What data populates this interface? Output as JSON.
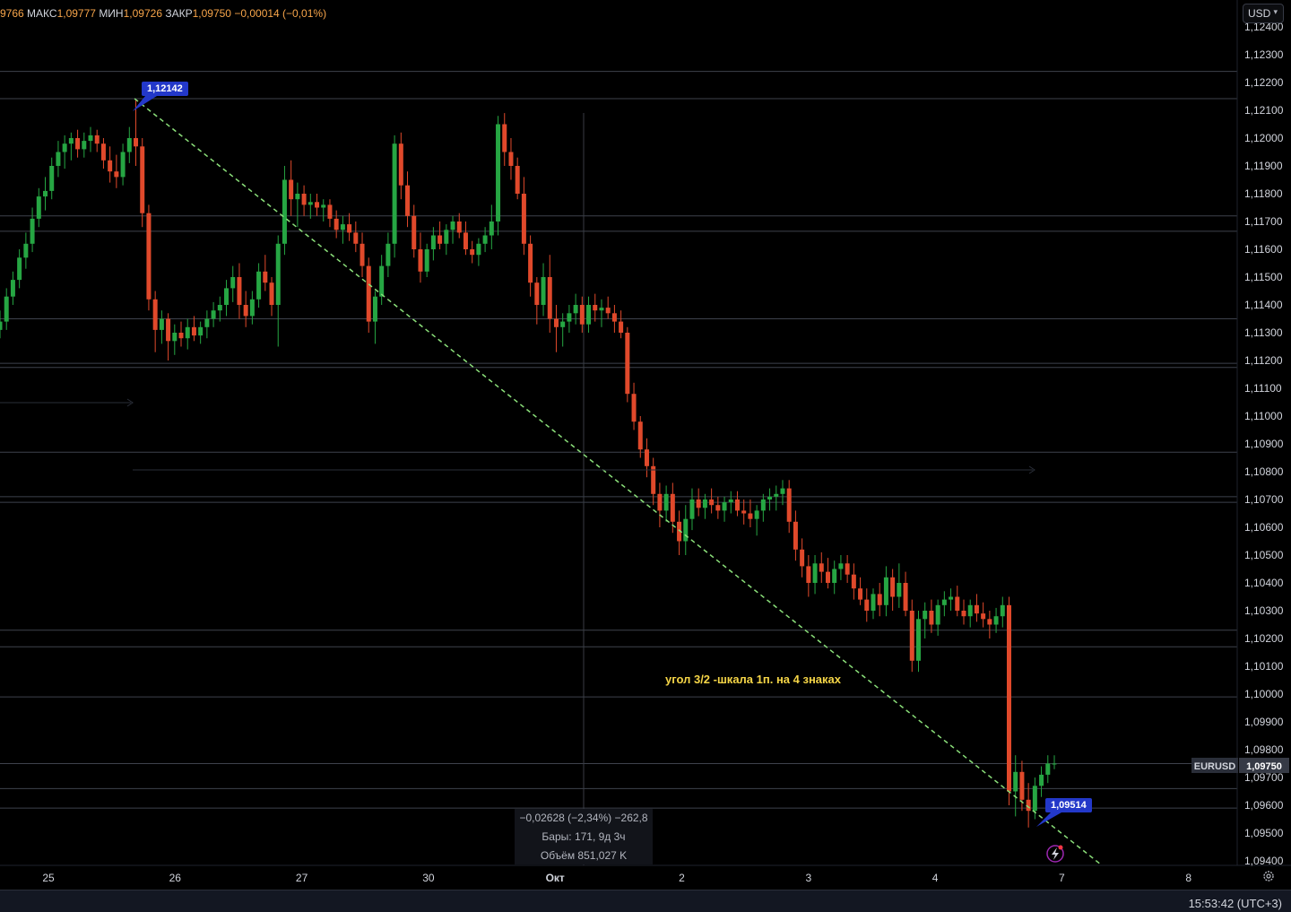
{
  "ohlc": {
    "open_tail": "9766",
    "high_label": "МАКС",
    "high": "1,09777",
    "low_label": "МИН",
    "low": "1,09726",
    "close_label": "ЗАКР",
    "close": "1,09750",
    "change": "−0,00014 (−0,01%)"
  },
  "currency": "USD",
  "time": "15:53:42 (UTC+3)",
  "annotation": "угол 3/2 -шкала 1п. на 4 знаках",
  "tag_high": "1,12142",
  "tag_low": "1,09514",
  "symbol": "EURUSD",
  "last_price": "1,09750",
  "measure": {
    "line1": "−0,02628 (−2,34%) −262,8",
    "line2": "Бары: 171, 9д 3ч",
    "line3": "Объём 851,027 K"
  },
  "colors": {
    "up": "#26a643",
    "down": "#e0492b",
    "trend": "#8be07a",
    "note": "#f5d547",
    "tag": "#2338c9"
  },
  "chart_data": {
    "type": "candlestick",
    "symbol": "EURUSD",
    "y_ticks": [
      "1,12400",
      "1,12300",
      "1,12200",
      "1,12100",
      "1,12000",
      "1,11900",
      "1,11800",
      "1,11700",
      "1,11600",
      "1,11500",
      "1,11400",
      "1,11300",
      "1,11200",
      "1,11100",
      "1,11000",
      "1,10900",
      "1,10800",
      "1,10700",
      "1,10600",
      "1,10500",
      "1,10400",
      "1,10300",
      "1,10200",
      "1,10100",
      "1,10000",
      "1,09900",
      "1,09800",
      "1,09700",
      "1,09600",
      "1,09500",
      "1,09400"
    ],
    "ylim": [
      1.0936,
      1.1244
    ],
    "x_ticks": [
      "25",
      "26",
      "27",
      "30",
      "Окт",
      "2",
      "3",
      "4",
      "7",
      "8"
    ],
    "x_tick_days": [
      0,
      1,
      2,
      3,
      4,
      5,
      6,
      7,
      8,
      9
    ],
    "horizontal_levels": [
      1.1224,
      1.12142,
      1.1172,
      1.11665,
      1.1135,
      1.1119,
      1.11175,
      1.1087,
      1.1071,
      1.1069,
      1.1023,
      1.1017,
      1.0999,
      1.0975,
      1.0966,
      1.0959
    ],
    "trendline": {
      "from": {
        "day": 0.68,
        "price": 1.12142
      },
      "to": {
        "day": 8.3,
        "price": 1.0939
      }
    },
    "candles": [
      [
        1.1131,
        1.1138,
        1.1128,
        1.1134
      ],
      [
        1.1134,
        1.1146,
        1.1131,
        1.1143
      ],
      [
        1.1143,
        1.1152,
        1.114,
        1.1149
      ],
      [
        1.1149,
        1.116,
        1.1146,
        1.1157
      ],
      [
        1.1157,
        1.1166,
        1.1153,
        1.1162
      ],
      [
        1.1162,
        1.1175,
        1.1159,
        1.1171
      ],
      [
        1.1171,
        1.1182,
        1.1168,
        1.1179
      ],
      [
        1.1179,
        1.1186,
        1.1174,
        1.1181
      ],
      [
        1.1181,
        1.1193,
        1.1178,
        1.119
      ],
      [
        1.119,
        1.1199,
        1.1186,
        1.1195
      ],
      [
        1.1195,
        1.1201,
        1.1189,
        1.1198
      ],
      [
        1.1198,
        1.1202,
        1.1192,
        1.12
      ],
      [
        1.12,
        1.1203,
        1.1193,
        1.1196
      ],
      [
        1.1196,
        1.1202,
        1.1193,
        1.1199
      ],
      [
        1.1199,
        1.1204,
        1.1195,
        1.1201
      ],
      [
        1.1201,
        1.1203,
        1.1195,
        1.1198
      ],
      [
        1.1198,
        1.12,
        1.1189,
        1.1192
      ],
      [
        1.1192,
        1.1197,
        1.1184,
        1.1188
      ],
      [
        1.1188,
        1.1194,
        1.1182,
        1.1186
      ],
      [
        1.1186,
        1.1198,
        1.1183,
        1.1195
      ],
      [
        1.1195,
        1.1204,
        1.1191,
        1.12
      ],
      [
        1.12,
        1.1214,
        1.119,
        1.1197
      ],
      [
        1.1197,
        1.12,
        1.1168,
        1.1173
      ],
      [
        1.1173,
        1.1176,
        1.1138,
        1.1142
      ],
      [
        1.1142,
        1.1145,
        1.1123,
        1.1131
      ],
      [
        1.1131,
        1.1138,
        1.1126,
        1.1135
      ],
      [
        1.1135,
        1.1137,
        1.112,
        1.1127
      ],
      [
        1.1127,
        1.1133,
        1.1122,
        1.113
      ],
      [
        1.113,
        1.1134,
        1.1125,
        1.1128
      ],
      [
        1.1128,
        1.1135,
        1.1124,
        1.1132
      ],
      [
        1.1132,
        1.1136,
        1.1127,
        1.1129
      ],
      [
        1.1129,
        1.1134,
        1.1126,
        1.1132
      ],
      [
        1.1132,
        1.1138,
        1.1128,
        1.1135
      ],
      [
        1.1135,
        1.1141,
        1.1132,
        1.1138
      ],
      [
        1.1138,
        1.1143,
        1.1134,
        1.114
      ],
      [
        1.114,
        1.1149,
        1.1136,
        1.1146
      ],
      [
        1.1146,
        1.1154,
        1.1141,
        1.115
      ],
      [
        1.115,
        1.1155,
        1.1135,
        1.114
      ],
      [
        1.114,
        1.1145,
        1.1132,
        1.1136
      ],
      [
        1.1136,
        1.1145,
        1.1133,
        1.1142
      ],
      [
        1.1142,
        1.1155,
        1.1139,
        1.1152
      ],
      [
        1.1152,
        1.1158,
        1.1145,
        1.1148
      ],
      [
        1.1148,
        1.115,
        1.1136,
        1.114
      ],
      [
        1.114,
        1.1165,
        1.1125,
        1.1162
      ],
      [
        1.1162,
        1.119,
        1.1158,
        1.1185
      ],
      [
        1.1185,
        1.1192,
        1.1172,
        1.1178
      ],
      [
        1.1178,
        1.1184,
        1.1168,
        1.118
      ],
      [
        1.118,
        1.1183,
        1.1172,
        1.1176
      ],
      [
        1.1176,
        1.118,
        1.1171,
        1.1177
      ],
      [
        1.1177,
        1.118,
        1.1172,
        1.1175
      ],
      [
        1.1175,
        1.1178,
        1.117,
        1.1176
      ],
      [
        1.1176,
        1.1178,
        1.1168,
        1.1171
      ],
      [
        1.1171,
        1.1174,
        1.1164,
        1.1167
      ],
      [
        1.1167,
        1.1172,
        1.1162,
        1.1169
      ],
      [
        1.1169,
        1.1173,
        1.1163,
        1.1166
      ],
      [
        1.1166,
        1.117,
        1.1159,
        1.1162
      ],
      [
        1.1162,
        1.1166,
        1.115,
        1.1154
      ],
      [
        1.1154,
        1.1157,
        1.113,
        1.1134
      ],
      [
        1.1134,
        1.1145,
        1.1126,
        1.1143
      ],
      [
        1.1143,
        1.1158,
        1.114,
        1.1154
      ],
      [
        1.1154,
        1.1166,
        1.115,
        1.1162
      ],
      [
        1.1162,
        1.1201,
        1.1157,
        1.1198
      ],
      [
        1.1198,
        1.1202,
        1.1178,
        1.1183
      ],
      [
        1.1183,
        1.1188,
        1.1168,
        1.1172
      ],
      [
        1.1172,
        1.1176,
        1.1157,
        1.116
      ],
      [
        1.116,
        1.1166,
        1.1148,
        1.1152
      ],
      [
        1.1152,
        1.1162,
        1.115,
        1.116
      ],
      [
        1.116,
        1.1168,
        1.1156,
        1.1165
      ],
      [
        1.1165,
        1.117,
        1.116,
        1.1162
      ],
      [
        1.1162,
        1.1169,
        1.1158,
        1.1167
      ],
      [
        1.1167,
        1.1172,
        1.1162,
        1.117
      ],
      [
        1.117,
        1.1173,
        1.1164,
        1.1166
      ],
      [
        1.1166,
        1.117,
        1.1158,
        1.116
      ],
      [
        1.116,
        1.1163,
        1.1155,
        1.1158
      ],
      [
        1.1158,
        1.1164,
        1.1154,
        1.1162
      ],
      [
        1.1162,
        1.1168,
        1.1159,
        1.1165
      ],
      [
        1.1165,
        1.1176,
        1.116,
        1.117
      ],
      [
        1.117,
        1.1208,
        1.1165,
        1.1205
      ],
      [
        1.1205,
        1.1209,
        1.119,
        1.1195
      ],
      [
        1.1195,
        1.12,
        1.1185,
        1.119
      ],
      [
        1.119,
        1.1193,
        1.1178,
        1.118
      ],
      [
        1.118,
        1.1186,
        1.1158,
        1.1162
      ],
      [
        1.1162,
        1.1165,
        1.1143,
        1.1148
      ],
      [
        1.1148,
        1.115,
        1.1133,
        1.114
      ],
      [
        1.114,
        1.1155,
        1.1136,
        1.115
      ],
      [
        1.115,
        1.1158,
        1.113,
        1.1135
      ],
      [
        1.1135,
        1.114,
        1.1123,
        1.1132
      ],
      [
        1.1132,
        1.1137,
        1.1125,
        1.1134
      ],
      [
        1.1134,
        1.114,
        1.113,
        1.1137
      ],
      [
        1.1137,
        1.1144,
        1.1133,
        1.114
      ],
      [
        1.114,
        1.1143,
        1.113,
        1.1133
      ],
      [
        1.1133,
        1.1143,
        1.113,
        1.114
      ],
      [
        1.114,
        1.1144,
        1.1134,
        1.1138
      ],
      [
        1.1138,
        1.1142,
        1.1132,
        1.1139
      ],
      [
        1.1139,
        1.1143,
        1.1135,
        1.1137
      ],
      [
        1.1137,
        1.114,
        1.113,
        1.1134
      ],
      [
        1.1134,
        1.1138,
        1.1128,
        1.113
      ],
      [
        1.113,
        1.1132,
        1.1105,
        1.1108
      ],
      [
        1.1108,
        1.1112,
        1.1095,
        1.1098
      ],
      [
        1.1098,
        1.11,
        1.1085,
        1.1088
      ],
      [
        1.1088,
        1.1092,
        1.1078,
        1.1082
      ],
      [
        1.1082,
        1.1085,
        1.1068,
        1.1072
      ],
      [
        1.1072,
        1.1076,
        1.106,
        1.1066
      ],
      [
        1.1066,
        1.1075,
        1.1062,
        1.1072
      ],
      [
        1.1072,
        1.1076,
        1.1058,
        1.1062
      ],
      [
        1.1062,
        1.1066,
        1.105,
        1.1055
      ],
      [
        1.1055,
        1.1068,
        1.105,
        1.1063
      ],
      [
        1.1063,
        1.1074,
        1.1059,
        1.107
      ],
      [
        1.107,
        1.1074,
        1.1064,
        1.1067
      ],
      [
        1.1067,
        1.1072,
        1.1063,
        1.107
      ],
      [
        1.107,
        1.1074,
        1.1065,
        1.1068
      ],
      [
        1.1068,
        1.1071,
        1.1063,
        1.1066
      ],
      [
        1.1066,
        1.1071,
        1.1062,
        1.1069
      ],
      [
        1.1069,
        1.1073,
        1.1065,
        1.107
      ],
      [
        1.107,
        1.1073,
        1.1064,
        1.1066
      ],
      [
        1.1066,
        1.107,
        1.1061,
        1.1065
      ],
      [
        1.1065,
        1.107,
        1.106,
        1.1063
      ],
      [
        1.1063,
        1.1068,
        1.1057,
        1.1066
      ],
      [
        1.1066,
        1.1072,
        1.1062,
        1.107
      ],
      [
        1.107,
        1.1074,
        1.1066,
        1.1071
      ],
      [
        1.1071,
        1.1075,
        1.1066,
        1.1072
      ],
      [
        1.1072,
        1.1077,
        1.1068,
        1.1074
      ],
      [
        1.1074,
        1.1077,
        1.1058,
        1.1062
      ],
      [
        1.1062,
        1.1066,
        1.1048,
        1.1052
      ],
      [
        1.1052,
        1.1056,
        1.1042,
        1.1046
      ],
      [
        1.1046,
        1.105,
        1.1035,
        1.104
      ],
      [
        1.104,
        1.105,
        1.1036,
        1.1047
      ],
      [
        1.1047,
        1.1051,
        1.104,
        1.1044
      ],
      [
        1.1044,
        1.1049,
        1.1038,
        1.104
      ],
      [
        1.104,
        1.1048,
        1.1036,
        1.1045
      ],
      [
        1.1045,
        1.105,
        1.1041,
        1.1047
      ],
      [
        1.1047,
        1.105,
        1.104,
        1.1043
      ],
      [
        1.1043,
        1.1047,
        1.1034,
        1.1038
      ],
      [
        1.1038,
        1.1042,
        1.1032,
        1.1034
      ],
      [
        1.1034,
        1.1038,
        1.1026,
        1.103
      ],
      [
        1.103,
        1.1038,
        1.1027,
        1.1036
      ],
      [
        1.1036,
        1.104,
        1.1028,
        1.1032
      ],
      [
        1.1032,
        1.1046,
        1.1028,
        1.1042
      ],
      [
        1.1042,
        1.1045,
        1.103,
        1.1035
      ],
      [
        1.1035,
        1.1047,
        1.1031,
        1.104
      ],
      [
        1.104,
        1.1044,
        1.1028,
        1.103
      ],
      [
        1.103,
        1.1034,
        1.1008,
        1.1012
      ],
      [
        1.1012,
        1.103,
        1.1008,
        1.1027
      ],
      [
        1.1027,
        1.1033,
        1.102,
        1.103
      ],
      [
        1.103,
        1.1034,
        1.1022,
        1.1025
      ],
      [
        1.1025,
        1.1034,
        1.1021,
        1.1032
      ],
      [
        1.1032,
        1.1037,
        1.1028,
        1.1034
      ],
      [
        1.1034,
        1.1038,
        1.103,
        1.1035
      ],
      [
        1.1035,
        1.1039,
        1.1028,
        1.103
      ],
      [
        1.103,
        1.1034,
        1.1025,
        1.1028
      ],
      [
        1.1028,
        1.1034,
        1.1024,
        1.1032
      ],
      [
        1.1032,
        1.1036,
        1.1026,
        1.1029
      ],
      [
        1.1029,
        1.1033,
        1.1024,
        1.1027
      ],
      [
        1.1027,
        1.103,
        1.102,
        1.1025
      ],
      [
        1.1025,
        1.1031,
        1.1022,
        1.1028
      ],
      [
        1.1028,
        1.1035,
        1.1024,
        1.1032
      ],
      [
        1.1032,
        1.1035,
        1.096,
        1.0965
      ],
      [
        1.0965,
        1.0978,
        1.0956,
        1.0972
      ],
      [
        1.0972,
        1.0976,
        1.0958,
        1.0962
      ],
      [
        1.0962,
        1.0968,
        1.0952,
        1.0958
      ],
      [
        1.0958,
        1.097,
        1.0955,
        1.0967
      ],
      [
        1.0967,
        1.0974,
        1.0963,
        1.0971
      ],
      [
        1.0971,
        1.0978,
        1.0968,
        1.0975
      ],
      [
        1.0975,
        1.0978,
        1.0973,
        1.0975
      ]
    ]
  }
}
